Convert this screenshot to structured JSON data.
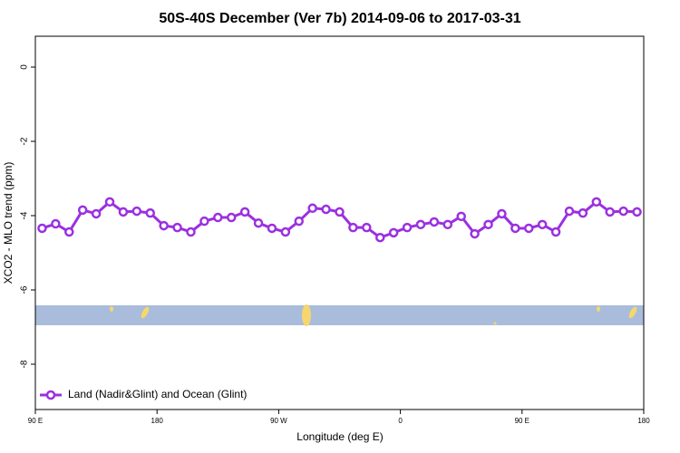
{
  "chart_data": {
    "type": "line",
    "title": "50S-40S December (Ver 7b)   2014-09-06 to 2017-03-31",
    "x_label": "Longitude (deg E)",
    "y_label": "XCO2 - MLO trend (ppm)",
    "x": [
      95,
      105,
      115,
      125,
      135,
      145,
      155,
      165,
      175,
      185,
      195,
      205,
      215,
      225,
      235,
      245,
      255,
      265,
      275,
      285,
      295,
      305,
      315,
      325,
      335,
      345,
      355,
      365,
      375,
      385,
      395,
      405,
      415,
      425,
      435,
      445,
      455,
      465,
      475,
      485,
      495,
      505,
      515,
      525,
      535
    ],
    "series": [
      {
        "name": "Land (Nadir&Glint) and Ocean (Glint)",
        "color": "#9b30e0",
        "values": [
          -4.34,
          -4.22,
          -4.44,
          -3.85,
          -3.95,
          -3.63,
          -3.9,
          -3.88,
          -3.93,
          -4.27,
          -4.32,
          -4.44,
          -4.15,
          -4.05,
          -4.05,
          -3.9,
          -4.2,
          -4.34,
          -4.44,
          -4.15,
          -3.8,
          -3.83,
          -3.9,
          -4.32,
          -4.32,
          -4.59,
          -4.46,
          -4.32,
          -4.24,
          -4.17,
          -4.24,
          -4.02,
          -4.49,
          -4.24,
          -3.95,
          -4.34,
          -4.34,
          -4.24,
          -4.44,
          -3.88,
          -3.93,
          -3.63,
          -3.9,
          -3.88,
          -3.9
        ]
      }
    ],
    "xlim": [
      90,
      540
    ],
    "xticks": [
      {
        "value": 90,
        "label": "90 E"
      },
      {
        "value": 180,
        "label": "180"
      },
      {
        "value": 270,
        "label": "90 W"
      },
      {
        "value": 360,
        "label": "0"
      },
      {
        "value": 450,
        "label": "90 E"
      },
      {
        "value": 540,
        "label": "180"
      }
    ],
    "ylim": [
      -9.22,
      0.83
    ],
    "yticks": [
      0,
      -2,
      -4,
      -6,
      -8
    ],
    "legend": "bottom-left"
  }
}
